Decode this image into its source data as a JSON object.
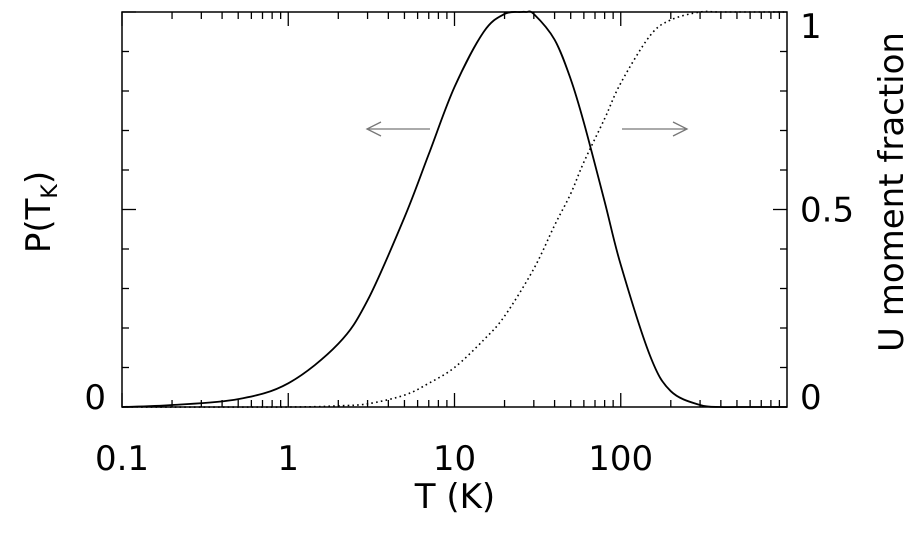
{
  "chart_data": {
    "type": "line",
    "title": "",
    "xlabel": "T (K)",
    "ylabel_left": "P(T",
    "ylabel_left_sub": "K",
    "ylabel_left_close": ")",
    "ylabel_right": "U moment fraction",
    "x_scale": "log",
    "xlim": [
      0.1,
      1000
    ],
    "ylim_left": [
      0,
      1
    ],
    "ylim_right": [
      0,
      1
    ],
    "x_ticks": [
      {
        "value": 0.1,
        "label": "0.1"
      },
      {
        "value": 1,
        "label": "1"
      },
      {
        "value": 10,
        "label": "10"
      },
      {
        "value": 100,
        "label": "100"
      }
    ],
    "y_left_ticks": [
      {
        "value": 0,
        "label": "0"
      }
    ],
    "y_right_ticks": [
      {
        "value": 0,
        "label": "0"
      },
      {
        "value": 0.5,
        "label": "0.5"
      },
      {
        "value": 1,
        "label": "1"
      }
    ],
    "grid": false,
    "series": [
      {
        "axis": "left",
        "style": "solid",
        "x": [
          0.1,
          0.2,
          0.5,
          1,
          2,
          3,
          5,
          7,
          10,
          15,
          20,
          25,
          27,
          30,
          40,
          50,
          60,
          80,
          100,
          150,
          200,
          300,
          400,
          500,
          1000
        ],
        "y": [
          0.0,
          0.005,
          0.02,
          0.06,
          0.16,
          0.27,
          0.48,
          0.64,
          0.81,
          0.95,
          0.995,
          1.0,
          1.0,
          0.995,
          0.93,
          0.83,
          0.72,
          0.52,
          0.36,
          0.13,
          0.04,
          0.005,
          0.0,
          0.0,
          0.0
        ]
      },
      {
        "axis": "right",
        "style": "dotted",
        "x": [
          0.1,
          1,
          2,
          3,
          5,
          7,
          10,
          15,
          20,
          30,
          40,
          50,
          60,
          80,
          100,
          150,
          200,
          300,
          400,
          1000
        ],
        "y": [
          0.0,
          0.0,
          0.003,
          0.008,
          0.03,
          0.06,
          0.1,
          0.17,
          0.23,
          0.35,
          0.46,
          0.54,
          0.62,
          0.73,
          0.82,
          0.94,
          0.98,
          1.0,
          1.0,
          1.0
        ]
      }
    ],
    "annotations": [
      {
        "type": "arrow",
        "direction": "left",
        "meaning": "solid curve reads left axis"
      },
      {
        "type": "arrow",
        "direction": "right",
        "meaning": "dotted curve reads right axis"
      }
    ]
  }
}
